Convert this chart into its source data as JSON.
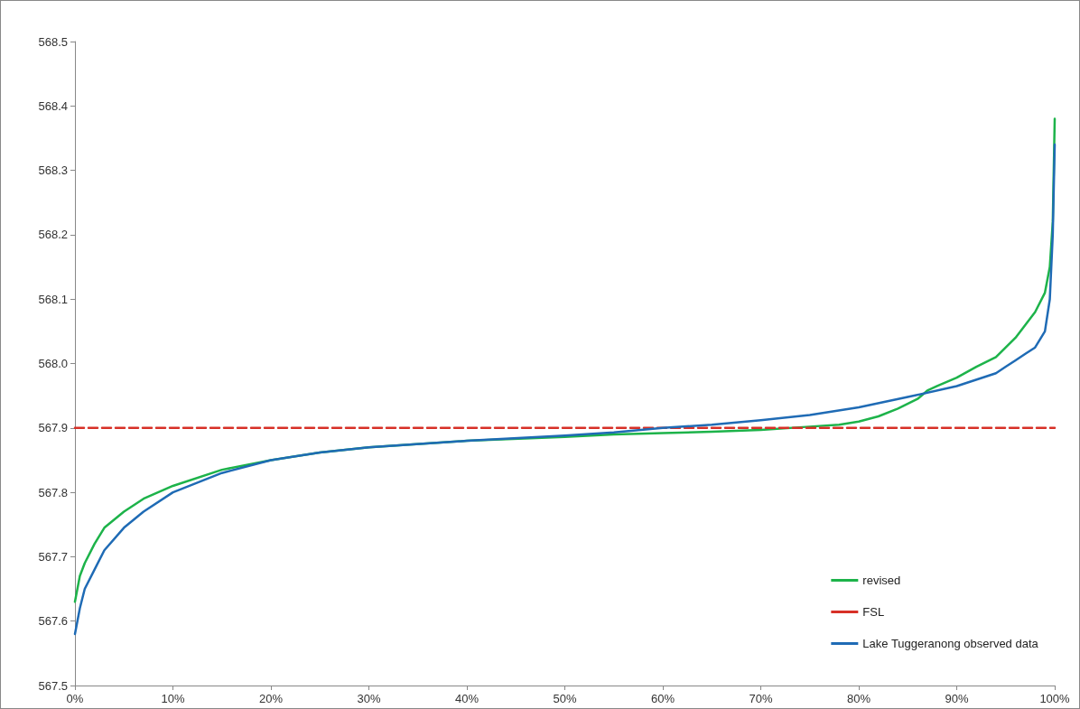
{
  "chart_data": {
    "type": "line",
    "legend": "bottom right",
    "line_style": "solid",
    "marker": "none",
    "grid": false,
    "xlim": [
      0,
      100
    ],
    "xticks": [
      {
        "value": 0,
        "label": "0%"
      },
      {
        "value": 10,
        "label": "10%"
      },
      {
        "value": 20,
        "label": "20%"
      },
      {
        "value": 30,
        "label": "30%"
      },
      {
        "value": 40,
        "label": "40%"
      },
      {
        "value": 50,
        "label": "50%"
      },
      {
        "value": 60,
        "label": "60%"
      },
      {
        "value": 70,
        "label": "70%"
      },
      {
        "value": 80,
        "label": "80%"
      },
      {
        "value": 90,
        "label": "90%"
      },
      {
        "value": 100,
        "label": "100%"
      }
    ],
    "ylim": [
      567.5,
      568.5
    ],
    "yticks": [
      567.5,
      567.6,
      567.7,
      567.8,
      567.9,
      {
        "value": 568,
        "label": "568.0"
      },
      568.1,
      568.2,
      568.3,
      568.4,
      568.5
    ],
    "series": [
      {
        "name": "revised",
        "color": "#1db34a",
        "x": [
          0,
          0.5,
          1,
          2,
          3,
          5,
          7,
          10,
          15,
          20,
          25,
          30,
          40,
          50,
          55,
          60,
          65,
          70,
          75,
          78,
          80,
          82,
          84,
          86,
          87,
          88,
          90,
          92,
          94,
          95,
          96,
          97,
          98,
          99,
          99.5,
          99.8,
          100
        ],
        "values": [
          567.63,
          567.67,
          567.69,
          567.72,
          567.745,
          567.77,
          567.79,
          567.81,
          567.835,
          567.85,
          567.862,
          567.87,
          567.88,
          567.886,
          567.89,
          567.892,
          567.894,
          567.897,
          567.902,
          567.905,
          567.91,
          567.918,
          567.93,
          567.945,
          567.958,
          567.965,
          567.978,
          567.995,
          568.01,
          568.025,
          568.04,
          568.06,
          568.08,
          568.11,
          568.15,
          568.22,
          568.38
        ]
      },
      {
        "name": "FSL",
        "color": "#d73027",
        "line_style": "dashed",
        "x": [
          0,
          100
        ],
        "values": [
          567.9,
          567.9
        ]
      },
      {
        "name": "Lake Tuggeranong observed data",
        "color": "#1f6bb5",
        "x": [
          0,
          0.5,
          1,
          2,
          3,
          5,
          7,
          10,
          15,
          20,
          25,
          30,
          40,
          50,
          55,
          60,
          65,
          70,
          75,
          80,
          85,
          90,
          94,
          95,
          96,
          97,
          98,
          99,
          99.5,
          99.8,
          100
        ],
        "values": [
          567.58,
          567.62,
          567.65,
          567.68,
          567.71,
          567.745,
          567.77,
          567.8,
          567.83,
          567.85,
          567.862,
          567.87,
          567.88,
          567.888,
          567.893,
          567.9,
          567.905,
          567.912,
          567.92,
          567.932,
          567.948,
          567.965,
          567.985,
          567.995,
          568.005,
          568.015,
          568.025,
          568.05,
          568.1,
          568.2,
          568.34
        ]
      }
    ]
  }
}
